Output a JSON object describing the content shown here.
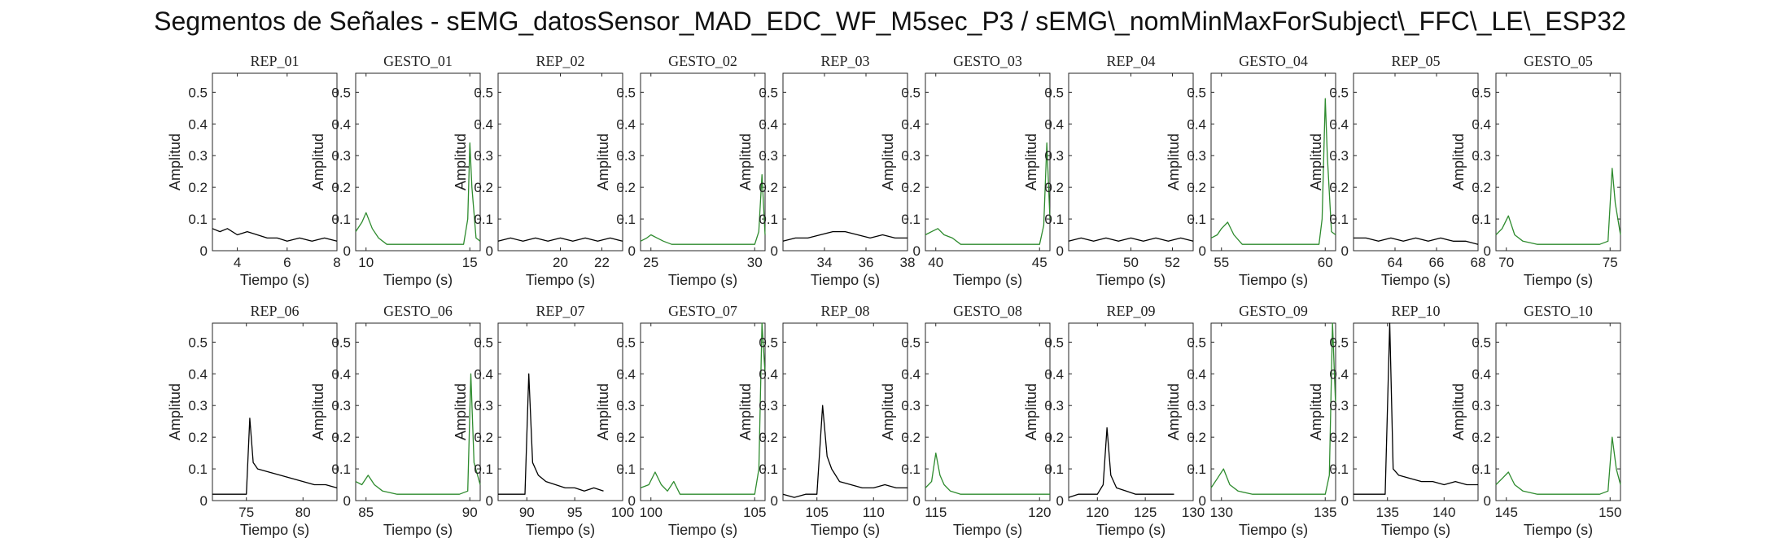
{
  "figure_title": "Segmentos de Señales - sEMG_datosSensor_MAD_EDC_WF_M5sec_P3 / sEMG\\_nomMinMaxForSubject\\_FFC\\_LE\\_ESP32",
  "colors": {
    "rep": "#000000",
    "gesto": "#2e8b2e",
    "axis": "#262626"
  },
  "chart_data": [
    {
      "type": "line",
      "title": "REP_01",
      "kind": "rep",
      "xlim": [
        3,
        8
      ],
      "xticks": [
        4,
        6,
        8
      ],
      "ylim": [
        0,
        0.56
      ],
      "yticks": [
        0,
        0.1,
        0.2,
        0.3,
        0.4,
        0.5
      ],
      "xlabel": "Tiempo (s)",
      "ylabel": "Amplitud",
      "x": [
        3,
        3.3,
        3.6,
        4,
        4.4,
        4.8,
        5.2,
        5.6,
        6,
        6.5,
        7,
        7.5,
        8
      ],
      "y": [
        0.07,
        0.06,
        0.07,
        0.05,
        0.06,
        0.05,
        0.04,
        0.04,
        0.03,
        0.04,
        0.03,
        0.04,
        0.03
      ]
    },
    {
      "type": "line",
      "title": "GESTO_01",
      "kind": "gesto",
      "xlim": [
        9.5,
        15.5
      ],
      "xticks": [
        10,
        15
      ],
      "ylim": [
        0,
        0.56
      ],
      "yticks": [
        0,
        0.1,
        0.2,
        0.3,
        0.4,
        0.5
      ],
      "xlabel": "Tiempo (s)",
      "ylabel": "Amplitud",
      "x": [
        9.5,
        9.8,
        10,
        10.3,
        10.6,
        11,
        12,
        13,
        14,
        14.7,
        14.9,
        15,
        15.1,
        15.3,
        15.5
      ],
      "y": [
        0.06,
        0.09,
        0.12,
        0.07,
        0.04,
        0.02,
        0.02,
        0.02,
        0.02,
        0.02,
        0.1,
        0.34,
        0.2,
        0.04,
        0.03
      ]
    },
    {
      "type": "line",
      "title": "REP_02",
      "kind": "rep",
      "xlim": [
        17,
        23
      ],
      "xticks": [
        20,
        22
      ],
      "ylim": [
        0,
        0.56
      ],
      "yticks": [
        0,
        0.1,
        0.2,
        0.3,
        0.4,
        0.5
      ],
      "xlabel": "Tiempo (s)",
      "ylabel": "Amplitud",
      "x": [
        17,
        17.6,
        18.2,
        18.8,
        19.4,
        20,
        20.6,
        21.2,
        21.8,
        22.4,
        23
      ],
      "y": [
        0.03,
        0.04,
        0.03,
        0.04,
        0.03,
        0.04,
        0.03,
        0.04,
        0.03,
        0.04,
        0.03
      ]
    },
    {
      "type": "line",
      "title": "GESTO_02",
      "kind": "gesto",
      "xlim": [
        24.5,
        30.5
      ],
      "xticks": [
        25,
        30
      ],
      "ylim": [
        0,
        0.56
      ],
      "yticks": [
        0,
        0.1,
        0.2,
        0.3,
        0.4,
        0.5
      ],
      "xlabel": "Tiempo (s)",
      "ylabel": "Amplitud",
      "x": [
        24.5,
        24.8,
        25,
        25.3,
        25.6,
        26,
        27,
        28,
        29,
        30,
        30.2,
        30.35,
        30.5
      ],
      "y": [
        0.03,
        0.04,
        0.05,
        0.04,
        0.03,
        0.02,
        0.02,
        0.02,
        0.02,
        0.02,
        0.06,
        0.24,
        0.05
      ]
    },
    {
      "type": "line",
      "title": "REP_03",
      "kind": "rep",
      "xlim": [
        32,
        38
      ],
      "xticks": [
        34,
        36,
        38
      ],
      "ylim": [
        0,
        0.56
      ],
      "yticks": [
        0,
        0.1,
        0.2,
        0.3,
        0.4,
        0.5
      ],
      "xlabel": "Tiempo (s)",
      "ylabel": "Amplitud",
      "x": [
        32,
        32.6,
        33.2,
        33.8,
        34.4,
        35,
        35.6,
        36.2,
        36.8,
        37.4,
        38
      ],
      "y": [
        0.03,
        0.04,
        0.04,
        0.05,
        0.06,
        0.06,
        0.05,
        0.04,
        0.05,
        0.04,
        0.04
      ]
    },
    {
      "type": "line",
      "title": "GESTO_03",
      "kind": "gesto",
      "xlim": [
        39.5,
        45.5
      ],
      "xticks": [
        40,
        45
      ],
      "ylim": [
        0,
        0.56
      ],
      "yticks": [
        0,
        0.1,
        0.2,
        0.3,
        0.4,
        0.5
      ],
      "xlabel": "Tiempo (s)",
      "ylabel": "Amplitud",
      "x": [
        39.5,
        39.8,
        40.1,
        40.4,
        40.8,
        41.2,
        42,
        43,
        44,
        45,
        45.2,
        45.35,
        45.5
      ],
      "y": [
        0.05,
        0.06,
        0.07,
        0.05,
        0.04,
        0.02,
        0.02,
        0.02,
        0.02,
        0.02,
        0.08,
        0.34,
        0.1
      ]
    },
    {
      "type": "line",
      "title": "REP_04",
      "kind": "rep",
      "xlim": [
        47,
        53
      ],
      "xticks": [
        50,
        52
      ],
      "ylim": [
        0,
        0.56
      ],
      "yticks": [
        0,
        0.1,
        0.2,
        0.3,
        0.4,
        0.5
      ],
      "xlabel": "Tiempo (s)",
      "ylabel": "Amplitud",
      "x": [
        47,
        47.6,
        48.2,
        48.8,
        49.4,
        50,
        50.6,
        51.2,
        51.8,
        52.4,
        53
      ],
      "y": [
        0.03,
        0.04,
        0.03,
        0.04,
        0.03,
        0.04,
        0.03,
        0.04,
        0.03,
        0.04,
        0.03
      ]
    },
    {
      "type": "line",
      "title": "GESTO_04",
      "kind": "gesto",
      "xlim": [
        54.5,
        60.5
      ],
      "xticks": [
        55,
        60
      ],
      "ylim": [
        0,
        0.56
      ],
      "yticks": [
        0,
        0.1,
        0.2,
        0.3,
        0.4,
        0.5
      ],
      "xlabel": "Tiempo (s)",
      "ylabel": "Amplitud",
      "x": [
        54.5,
        54.8,
        55,
        55.3,
        55.6,
        56,
        57,
        58,
        59,
        59.7,
        59.85,
        60,
        60.1,
        60.3,
        60.5
      ],
      "y": [
        0.04,
        0.05,
        0.07,
        0.09,
        0.05,
        0.02,
        0.02,
        0.02,
        0.02,
        0.02,
        0.1,
        0.48,
        0.3,
        0.06,
        0.05
      ]
    },
    {
      "type": "line",
      "title": "REP_05",
      "kind": "rep",
      "xlim": [
        62,
        68
      ],
      "xticks": [
        64,
        66,
        68
      ],
      "ylim": [
        0,
        0.56
      ],
      "yticks": [
        0,
        0.1,
        0.2,
        0.3,
        0.4,
        0.5
      ],
      "xlabel": "Tiempo (s)",
      "ylabel": "Amplitud",
      "x": [
        62,
        62.6,
        63.2,
        63.8,
        64.4,
        65,
        65.6,
        66.2,
        66.8,
        67.4,
        68
      ],
      "y": [
        0.04,
        0.04,
        0.03,
        0.04,
        0.03,
        0.04,
        0.03,
        0.04,
        0.03,
        0.03,
        0.02
      ]
    },
    {
      "type": "line",
      "title": "GESTO_05",
      "kind": "gesto",
      "xlim": [
        69.5,
        75.5
      ],
      "xticks": [
        70,
        75
      ],
      "ylim": [
        0,
        0.56
      ],
      "yticks": [
        0,
        0.1,
        0.2,
        0.3,
        0.4,
        0.5
      ],
      "xlabel": "Tiempo (s)",
      "ylabel": "Amplitud",
      "x": [
        69.5,
        69.8,
        70.1,
        70.4,
        70.8,
        71.5,
        72.5,
        73.5,
        74.5,
        74.9,
        75.1,
        75.25,
        75.5
      ],
      "y": [
        0.05,
        0.07,
        0.11,
        0.05,
        0.03,
        0.02,
        0.02,
        0.02,
        0.02,
        0.03,
        0.26,
        0.15,
        0.05
      ]
    },
    {
      "type": "line",
      "title": "REP_06",
      "kind": "rep",
      "xlim": [
        72,
        83
      ],
      "xticks": [
        75,
        80
      ],
      "ylim": [
        0,
        0.56
      ],
      "yticks": [
        0,
        0.1,
        0.2,
        0.3,
        0.4,
        0.5
      ],
      "xlabel": "Tiempo (s)",
      "ylabel": "Amplitud",
      "x": [
        72,
        73,
        74,
        75,
        75.3,
        75.6,
        76,
        77,
        78,
        79,
        80,
        81,
        82,
        83
      ],
      "y": [
        0.02,
        0.02,
        0.02,
        0.02,
        0.26,
        0.12,
        0.1,
        0.09,
        0.08,
        0.07,
        0.06,
        0.05,
        0.05,
        0.04
      ]
    },
    {
      "type": "line",
      "title": "GESTO_06",
      "kind": "gesto",
      "xlim": [
        84.5,
        90.5
      ],
      "xticks": [
        85,
        90
      ],
      "ylim": [
        0,
        0.56
      ],
      "yticks": [
        0,
        0.1,
        0.2,
        0.3,
        0.4,
        0.5
      ],
      "xlabel": "Tiempo (s)",
      "ylabel": "Amplitud",
      "x": [
        84.5,
        84.8,
        85.1,
        85.4,
        85.8,
        86.5,
        87.5,
        88.5,
        89.5,
        89.9,
        90.05,
        90.2,
        90.5
      ],
      "y": [
        0.06,
        0.05,
        0.08,
        0.05,
        0.03,
        0.02,
        0.02,
        0.02,
        0.02,
        0.03,
        0.4,
        0.12,
        0.05
      ]
    },
    {
      "type": "line",
      "title": "REP_07",
      "kind": "rep",
      "xlim": [
        87,
        100
      ],
      "xticks": [
        90,
        95,
        100
      ],
      "ylim": [
        0,
        0.56
      ],
      "yticks": [
        0,
        0.1,
        0.2,
        0.3,
        0.4,
        0.5
      ],
      "xlabel": "Tiempo (s)",
      "ylabel": "Amplitud",
      "x": [
        87,
        88,
        89,
        89.8,
        90.2,
        90.6,
        91.2,
        92,
        93,
        94,
        95,
        96,
        97,
        98
      ],
      "y": [
        0.02,
        0.02,
        0.02,
        0.02,
        0.4,
        0.12,
        0.08,
        0.06,
        0.05,
        0.04,
        0.04,
        0.03,
        0.04,
        0.03
      ]
    },
    {
      "type": "line",
      "title": "GESTO_07",
      "kind": "gesto",
      "xlim": [
        99.5,
        105.5
      ],
      "xticks": [
        100,
        105
      ],
      "ylim": [
        0,
        0.56
      ],
      "yticks": [
        0,
        0.1,
        0.2,
        0.3,
        0.4,
        0.5
      ],
      "xlabel": "Tiempo (s)",
      "ylabel": "Amplitud",
      "x": [
        99.5,
        99.9,
        100.2,
        100.5,
        100.8,
        101.1,
        101.4,
        102,
        103,
        104,
        105,
        105.2,
        105.35,
        105.5
      ],
      "y": [
        0.04,
        0.05,
        0.09,
        0.05,
        0.03,
        0.06,
        0.02,
        0.02,
        0.02,
        0.02,
        0.02,
        0.1,
        0.56,
        0.4
      ]
    },
    {
      "type": "line",
      "title": "REP_08",
      "kind": "rep",
      "xlim": [
        102,
        113
      ],
      "xticks": [
        105,
        110
      ],
      "ylim": [
        0,
        0.56
      ],
      "yticks": [
        0,
        0.1,
        0.2,
        0.3,
        0.4,
        0.5
      ],
      "xlabel": "Tiempo (s)",
      "ylabel": "Amplitud",
      "x": [
        102,
        103,
        104,
        105,
        105.5,
        105.9,
        106.3,
        107,
        108,
        109,
        110,
        111,
        112,
        113
      ],
      "y": [
        0.02,
        0.01,
        0.02,
        0.02,
        0.3,
        0.14,
        0.1,
        0.06,
        0.05,
        0.04,
        0.04,
        0.05,
        0.04,
        0.04
      ]
    },
    {
      "type": "line",
      "title": "GESTO_08",
      "kind": "gesto",
      "xlim": [
        114.5,
        120.5
      ],
      "xticks": [
        115,
        120
      ],
      "ylim": [
        0,
        0.56
      ],
      "yticks": [
        0,
        0.1,
        0.2,
        0.3,
        0.4,
        0.5
      ],
      "xlabel": "Tiempo (s)",
      "ylabel": "Amplitud",
      "x": [
        114.5,
        114.8,
        115,
        115.2,
        115.4,
        115.7,
        116.2,
        117,
        118,
        119,
        120,
        120.5
      ],
      "y": [
        0.04,
        0.06,
        0.15,
        0.08,
        0.05,
        0.03,
        0.02,
        0.02,
        0.02,
        0.02,
        0.02,
        0.02
      ]
    },
    {
      "type": "line",
      "title": "REP_09",
      "kind": "rep",
      "xlim": [
        117,
        130
      ],
      "xticks": [
        120,
        125,
        130
      ],
      "ylim": [
        0,
        0.56
      ],
      "yticks": [
        0,
        0.1,
        0.2,
        0.3,
        0.4,
        0.5
      ],
      "xlabel": "Tiempo (s)",
      "ylabel": "Amplitud",
      "x": [
        117,
        118,
        119,
        120,
        120.6,
        121,
        121.4,
        122,
        123,
        124,
        125,
        126,
        127,
        128
      ],
      "y": [
        0.01,
        0.02,
        0.02,
        0.02,
        0.05,
        0.23,
        0.08,
        0.04,
        0.03,
        0.02,
        0.02,
        0.02,
        0.02,
        0.02
      ]
    },
    {
      "type": "line",
      "title": "GESTO_09",
      "kind": "gesto",
      "xlim": [
        129.5,
        135.5
      ],
      "xticks": [
        130,
        135
      ],
      "ylim": [
        0,
        0.56
      ],
      "yticks": [
        0,
        0.1,
        0.2,
        0.3,
        0.4,
        0.5
      ],
      "xlabel": "Tiempo (s)",
      "ylabel": "Amplitud",
      "x": [
        129.5,
        129.8,
        130.1,
        130.4,
        130.8,
        131.5,
        132.5,
        133.5,
        134.5,
        135,
        135.2,
        135.35,
        135.5
      ],
      "y": [
        0.04,
        0.07,
        0.1,
        0.05,
        0.03,
        0.02,
        0.02,
        0.02,
        0.02,
        0.02,
        0.08,
        0.56,
        0.3
      ]
    },
    {
      "type": "line",
      "title": "REP_10",
      "kind": "rep",
      "xlim": [
        132,
        143
      ],
      "xticks": [
        135,
        140
      ],
      "ylim": [
        0,
        0.56
      ],
      "yticks": [
        0,
        0.1,
        0.2,
        0.3,
        0.4,
        0.5
      ],
      "xlabel": "Tiempo (s)",
      "ylabel": "Amplitud",
      "x": [
        132,
        133,
        134,
        134.8,
        135.2,
        135.5,
        136,
        137,
        138,
        139,
        140,
        141,
        142,
        143
      ],
      "y": [
        0.02,
        0.02,
        0.02,
        0.02,
        0.56,
        0.1,
        0.08,
        0.07,
        0.06,
        0.06,
        0.05,
        0.06,
        0.05,
        0.05
      ]
    },
    {
      "type": "line",
      "title": "GESTO_10",
      "kind": "gesto",
      "xlim": [
        144.5,
        150.5
      ],
      "xticks": [
        145,
        150
      ],
      "ylim": [
        0,
        0.56
      ],
      "yticks": [
        0,
        0.1,
        0.2,
        0.3,
        0.4,
        0.5
      ],
      "xlabel": "Tiempo (s)",
      "ylabel": "Amplitud",
      "x": [
        144.5,
        144.8,
        145.1,
        145.4,
        145.8,
        146.5,
        147.5,
        148.5,
        149.5,
        149.9,
        150.1,
        150.3,
        150.5
      ],
      "y": [
        0.05,
        0.07,
        0.09,
        0.05,
        0.03,
        0.02,
        0.02,
        0.02,
        0.02,
        0.03,
        0.2,
        0.1,
        0.05
      ]
    }
  ]
}
